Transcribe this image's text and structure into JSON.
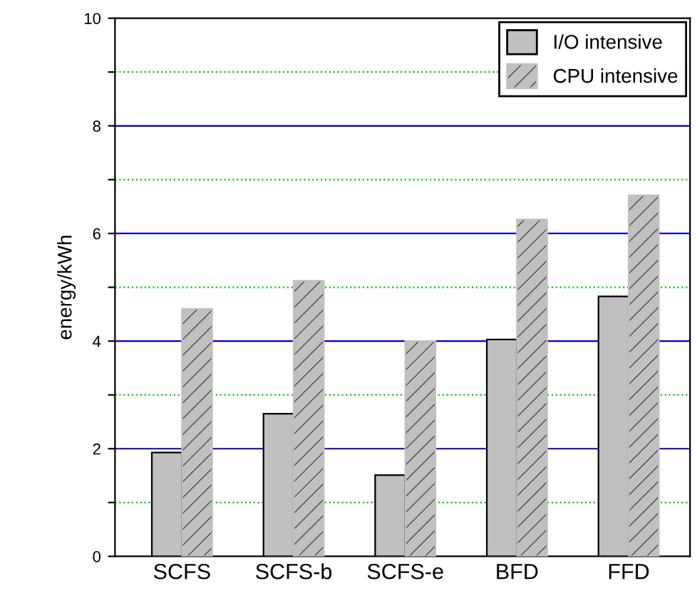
{
  "chart_data": {
    "type": "bar",
    "ylabel": "energy/kWh",
    "categories": [
      "SCFS",
      "SCFS-b",
      "SCFS-e",
      "BFD",
      "FFD"
    ],
    "series": [
      {
        "name": "I/O intensive",
        "color": "#c0c0c0",
        "values": [
          1.93,
          2.65,
          1.51,
          4.03,
          4.83
        ]
      },
      {
        "name": "CPU intensive",
        "color": "#c0c0c0",
        "values": [
          4.6,
          5.12,
          4.0,
          6.26,
          6.71
        ]
      }
    ],
    "ylim": [
      0,
      10
    ],
    "yticks": [
      0,
      {
        "value": 1,
        "label": null
      },
      2,
      {
        "value": 3,
        "label": null
      },
      4,
      {
        "value": 5,
        "label": null
      },
      6,
      {
        "value": 7,
        "label": null
      },
      8,
      {
        "value": 9,
        "label": null
      },
      10
    ],
    "grid": "y",
    "legend": "top right"
  }
}
